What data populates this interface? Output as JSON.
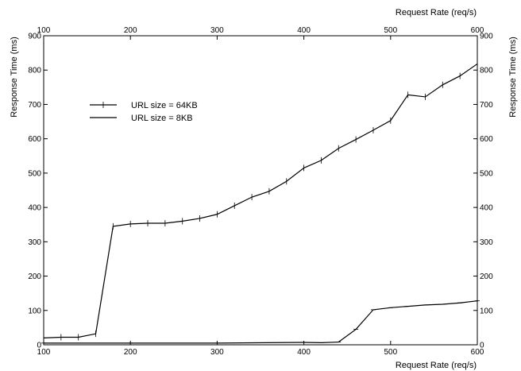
{
  "chart_data": {
    "type": "line",
    "title": "",
    "xlabel": "Request Rate (req/s)",
    "ylabel": "Response Time (ms)",
    "xlim": [
      100,
      600
    ],
    "ylim": [
      0,
      900
    ],
    "xticks": [
      100,
      200,
      300,
      400,
      500,
      600
    ],
    "yticks": [
      0,
      100,
      200,
      300,
      400,
      500,
      600,
      700,
      800,
      900
    ],
    "grid": false,
    "legend_position": "upper-left",
    "series": [
      {
        "name": "URL size = 64KB",
        "x": [
          100,
          120,
          140,
          160,
          180,
          200,
          220,
          240,
          260,
          280,
          300,
          320,
          340,
          360,
          380,
          400,
          420,
          440,
          460,
          480,
          500,
          520,
          540,
          560,
          580,
          600
        ],
        "y": [
          20,
          22,
          22,
          32,
          345,
          352,
          354,
          354,
          360,
          368,
          380,
          405,
          430,
          447,
          476,
          515,
          537,
          572,
          598,
          625,
          653,
          728,
          722,
          757,
          783,
          818
        ]
      },
      {
        "name": "URL size = 8KB",
        "x": [
          100,
          200,
          300,
          400,
          420,
          440,
          460,
          480,
          500,
          520,
          540,
          560,
          580,
          600
        ],
        "y": [
          5,
          5,
          5,
          7,
          6,
          8,
          45,
          102,
          108,
          112,
          116,
          118,
          122,
          128
        ]
      }
    ]
  }
}
